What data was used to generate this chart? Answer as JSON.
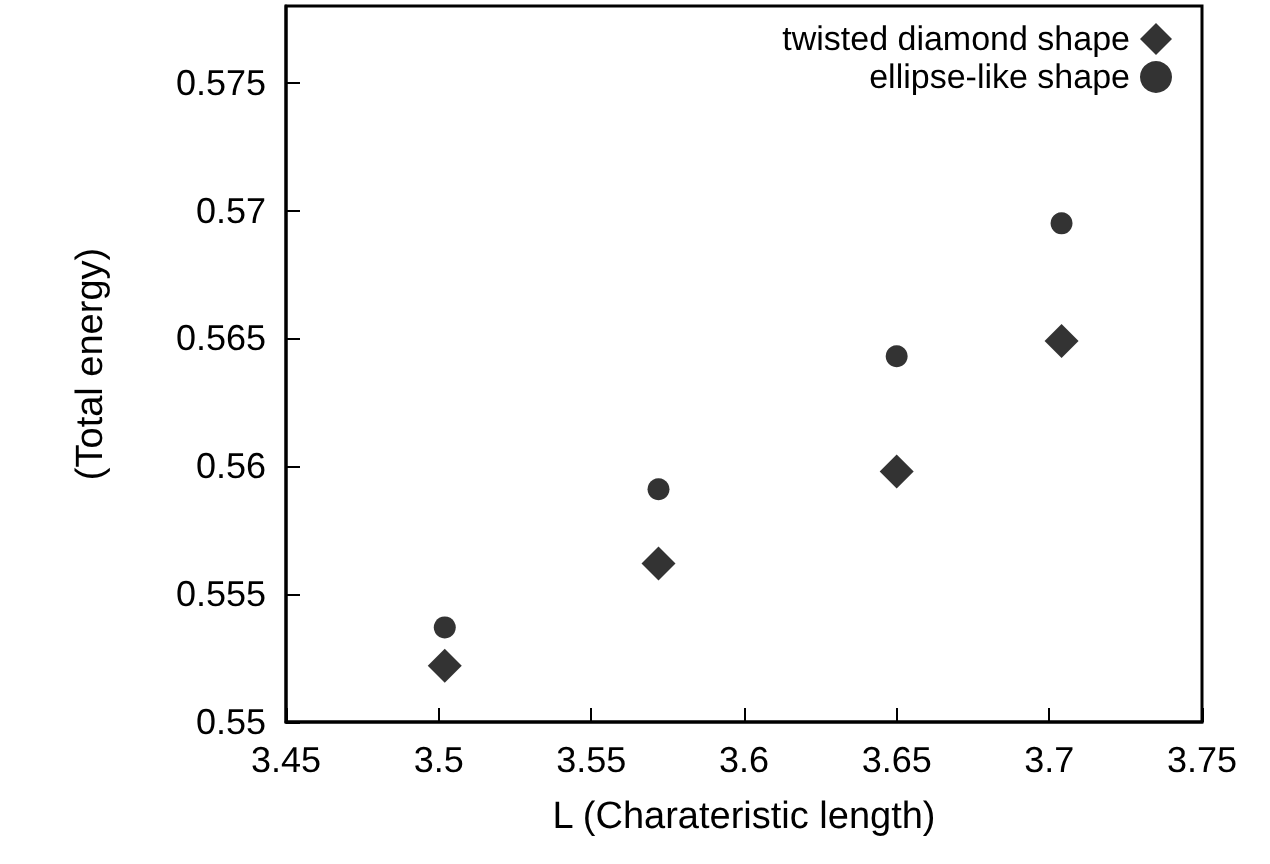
{
  "chart_data": {
    "type": "scatter",
    "xlabel": "L (Charateristic length)",
    "ylabel": "(Total energy)",
    "x": [
      3.502,
      3.572,
      3.65,
      3.704
    ],
    "series": [
      {
        "name": "twisted diamond shape",
        "color": "#000000",
        "marker": "diamond",
        "values": [
          0.5522,
          0.5562,
          0.5598,
          0.5649
        ]
      },
      {
        "name": "ellipse-like shape",
        "color": "#000000",
        "marker": "circle",
        "values": [
          0.5537,
          0.5591,
          0.5643,
          0.5695
        ]
      }
    ],
    "xlim": [
      3.45,
      3.75
    ],
    "xticks": [
      3.45,
      3.5,
      3.55,
      3.6,
      3.65,
      3.7,
      3.75
    ],
    "ylim": [
      0.55,
      0.578
    ],
    "yticks": [
      0.55,
      0.555,
      0.56,
      0.565,
      0.57,
      0.575
    ],
    "grid": false,
    "legend": "top right"
  }
}
